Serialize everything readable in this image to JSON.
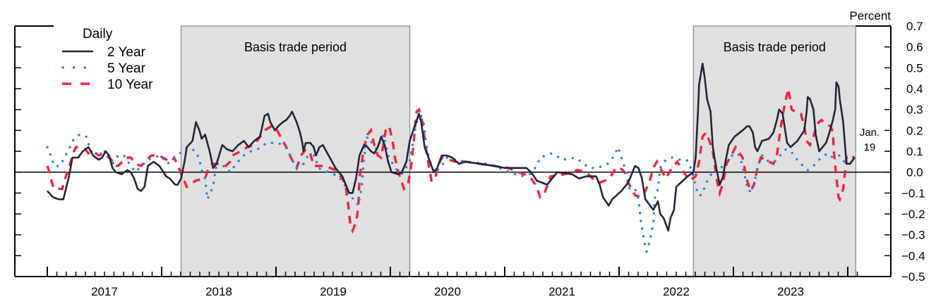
{
  "chart_data": {
    "type": "line",
    "title": "",
    "ylabel": "Percent",
    "xlabel": "",
    "ylim": [
      -0.5,
      0.7
    ],
    "xlim": [
      2016.72,
      2024.37
    ],
    "yticks": [
      "0.7",
      "0.6",
      "0.5",
      "0.4",
      "0.3",
      "0.2",
      "0.1",
      "0.0",
      "−0.1",
      "−0.2",
      "−0.3",
      "−0.4",
      "−0.5"
    ],
    "ytick_values": [
      0.7,
      0.6,
      0.5,
      0.4,
      0.3,
      0.2,
      0.1,
      0.0,
      -0.1,
      -0.2,
      -0.3,
      -0.4,
      -0.5
    ],
    "xticks": [
      "2017",
      "2018",
      "2019",
      "2020",
      "2021",
      "2022",
      "2023"
    ],
    "grid": false,
    "legend": {
      "title": "Daily",
      "placement": "top-left"
    },
    "shaded_periods": [
      {
        "label": "Basis trade period",
        "start": 2018.17,
        "end": 2020.17
      },
      {
        "label": "Basis trade period",
        "start": 2022.65,
        "end": 2024.07
      }
    ],
    "annotations": [
      {
        "text_line1": "Jan.",
        "text_line2": "19",
        "x": 2024.05
      }
    ],
    "colors": {
      "2 Year": "#23253a",
      "5 Year": "#2f7cf6",
      "10 Year": "#f0243c",
      "shade": "#e0e0e0"
    },
    "series": [
      {
        "name": "2 Year",
        "style": "solid",
        "x": [
          2017.0,
          2017.05,
          2017.1,
          2017.14,
          2017.19,
          2017.22,
          2017.27,
          2017.31,
          2017.36,
          2017.4,
          2017.45,
          2017.48,
          2017.51,
          2017.54,
          2017.57,
          2017.6,
          2017.65,
          2017.7,
          2017.73,
          2017.76,
          2017.79,
          2017.82,
          2017.85,
          2017.88,
          2017.93,
          2017.98,
          2018.04,
          2018.07,
          2018.12,
          2018.14,
          2018.17,
          2018.2,
          2018.22,
          2018.27,
          2018.3,
          2018.33,
          2018.35,
          2018.38,
          2018.42,
          2018.45,
          2018.48,
          2018.53,
          2018.57,
          2018.62,
          2018.67,
          2018.72,
          2018.76,
          2018.81,
          2018.86,
          2018.88,
          2018.9,
          2018.93,
          2018.95,
          2018.99,
          2019.02,
          2019.06,
          2019.09,
          2019.12,
          2019.14,
          2019.18,
          2019.21,
          2019.23,
          2019.24,
          2019.26,
          2019.3,
          2019.33,
          2019.35,
          2019.38,
          2019.41,
          2019.46,
          2019.49,
          2019.52,
          2019.55,
          2019.58,
          2019.61,
          2019.64,
          2019.67,
          2019.7,
          2019.73,
          2019.77,
          2019.8,
          2019.83,
          2019.86,
          2019.89,
          2019.92,
          2019.95,
          2019.98,
          2020.01,
          2020.07,
          2020.1,
          2020.14,
          2020.17,
          2020.2,
          2020.25,
          2020.27,
          2020.3,
          2020.34,
          2020.38,
          2020.41,
          2020.45,
          2020.49,
          2020.54,
          2020.6,
          2020.66,
          2020.78,
          2020.91,
          2021.0,
          2021.09,
          2021.19,
          2021.23,
          2021.28,
          2021.37,
          2021.43,
          2021.46,
          2021.59,
          2021.65,
          2021.71,
          2021.8,
          2021.83,
          2021.86,
          2021.91,
          2021.94,
          2022.02,
          2022.08,
          2022.14,
          2022.17,
          2022.2,
          2022.23,
          2022.3,
          2022.34,
          2022.36,
          2022.39,
          2022.43,
          2022.45,
          2022.48,
          2022.5,
          2022.56,
          2022.6,
          2022.65,
          2022.67,
          2022.69,
          2022.7,
          2022.73,
          2022.75,
          2022.77,
          2022.8,
          2022.82,
          2022.85,
          2022.88,
          2022.91,
          2022.93,
          2022.96,
          2023.01,
          2023.08,
          2023.12,
          2023.14,
          2023.17,
          2023.19,
          2023.21,
          2023.25,
          2023.31,
          2023.35,
          2023.38,
          2023.4,
          2023.43,
          2023.45,
          2023.47,
          2023.5,
          2023.56,
          2023.62,
          2023.64,
          2023.65,
          2023.67,
          2023.7,
          2023.72,
          2023.75,
          2023.81,
          2023.84,
          2023.87,
          2023.89,
          2023.9,
          2023.92,
          2023.93,
          2023.96,
          2023.98,
          2023.99,
          2024.02,
          2024.06
        ],
        "y": [
          -0.09,
          -0.12,
          -0.13,
          -0.13,
          -0.02,
          0.07,
          0.07,
          0.1,
          0.12,
          0.08,
          0.06,
          0.07,
          0.1,
          0.08,
          0.02,
          0.0,
          -0.01,
          0.01,
          0.0,
          -0.03,
          -0.08,
          -0.09,
          -0.07,
          0.03,
          0.05,
          0.03,
          -0.02,
          -0.03,
          -0.06,
          -0.06,
          -0.03,
          0.05,
          0.12,
          0.15,
          0.24,
          0.2,
          0.16,
          0.18,
          0.1,
          0.02,
          0.04,
          0.13,
          0.11,
          0.1,
          0.13,
          0.15,
          0.12,
          0.15,
          0.17,
          0.22,
          0.27,
          0.28,
          0.24,
          0.2,
          0.22,
          0.24,
          0.25,
          0.27,
          0.29,
          0.24,
          0.19,
          0.14,
          0.1,
          0.14,
          0.14,
          0.12,
          0.08,
          0.12,
          0.13,
          0.08,
          0.05,
          0.02,
          0.0,
          -0.02,
          -0.06,
          -0.1,
          -0.1,
          -0.03,
          0.08,
          0.13,
          0.12,
          0.1,
          0.09,
          0.12,
          0.17,
          0.13,
          0.05,
          0.0,
          -0.01,
          0.0,
          0.05,
          0.15,
          0.2,
          0.28,
          0.24,
          0.12,
          0.06,
          0.0,
          0.02,
          0.08,
          0.08,
          0.07,
          0.04,
          0.05,
          0.04,
          0.03,
          0.02,
          0.02,
          0.02,
          0.0,
          -0.04,
          -0.06,
          -0.02,
          0.0,
          -0.01,
          -0.03,
          -0.02,
          -0.02,
          -0.06,
          -0.12,
          -0.16,
          -0.13,
          -0.09,
          -0.05,
          0.03,
          0.02,
          -0.03,
          -0.13,
          -0.18,
          -0.14,
          -0.2,
          -0.22,
          -0.28,
          -0.22,
          -0.18,
          -0.07,
          -0.04,
          -0.02,
          0.0,
          0.07,
          0.29,
          0.42,
          0.52,
          0.45,
          0.35,
          0.29,
          0.12,
          0.02,
          -0.06,
          -0.02,
          0.05,
          0.13,
          0.17,
          0.2,
          0.22,
          0.22,
          0.19,
          0.12,
          0.1,
          0.15,
          0.16,
          0.19,
          0.25,
          0.3,
          0.28,
          0.21,
          0.14,
          0.12,
          0.15,
          0.2,
          0.29,
          0.36,
          0.35,
          0.3,
          0.18,
          0.1,
          0.14,
          0.19,
          0.25,
          0.3,
          0.43,
          0.41,
          0.35,
          0.24,
          0.1,
          0.04,
          0.04,
          0.07
        ]
      },
      {
        "name": "5 Year",
        "style": "dotted",
        "x": [
          2017.0,
          2017.03,
          2017.06,
          2017.11,
          2017.15,
          2017.19,
          2017.22,
          2017.28,
          2017.34,
          2017.37,
          2017.41,
          2017.45,
          2017.49,
          2017.57,
          2017.62,
          2017.67,
          2017.73,
          2017.77,
          2017.88,
          2017.99,
          2018.05,
          2018.14,
          2018.2,
          2018.23,
          2018.3,
          2018.33,
          2018.35,
          2018.38,
          2018.4,
          2018.44,
          2018.46,
          2018.47,
          2018.55,
          2018.6,
          2018.65,
          2018.72,
          2018.78,
          2018.84,
          2018.92,
          2019.01,
          2019.07,
          2019.1,
          2019.14,
          2019.18,
          2019.23,
          2019.28,
          2019.34,
          2019.37,
          2019.55,
          2019.61,
          2019.65,
          2019.69,
          2019.72,
          2019.75,
          2019.77,
          2019.8,
          2019.88,
          2019.94,
          2019.98,
          2020.04,
          2020.1,
          2020.17,
          2020.2,
          2020.23,
          2020.27,
          2020.29,
          2020.31,
          2020.34,
          2020.38,
          2020.44,
          2020.49,
          2020.66,
          2020.85,
          2021.0,
          2021.14,
          2021.22,
          2021.28,
          2021.31,
          2021.41,
          2021.51,
          2021.62,
          2021.74,
          2021.81,
          2021.9,
          2021.96,
          2021.99,
          2022.02,
          2022.07,
          2022.09,
          2022.14,
          2022.17,
          2022.19,
          2022.22,
          2022.24,
          2022.27,
          2022.3,
          2022.31,
          2022.34,
          2022.36,
          2022.41,
          2022.46,
          2022.53,
          2022.59,
          2022.62,
          2022.65,
          2022.67,
          2022.69,
          2022.72,
          2022.75,
          2022.78,
          2022.82,
          2022.88,
          2022.91,
          2022.99,
          2023.04,
          2023.07,
          2023.13,
          2023.16,
          2023.2,
          2023.22,
          2023.25,
          2023.31,
          2023.36,
          2023.41,
          2023.46,
          2023.52,
          2023.57,
          2023.65,
          2023.7,
          2023.75,
          2023.82,
          2023.87,
          2023.93,
          2023.97,
          2024.0
        ],
        "y": [
          0.12,
          0.08,
          0.03,
          0.03,
          0.07,
          0.11,
          0.15,
          0.18,
          0.17,
          0.12,
          0.07,
          0.07,
          0.11,
          0.04,
          0.08,
          0.08,
          0.03,
          0.0,
          0.06,
          0.08,
          0.04,
          0.08,
          0.11,
          0.12,
          0.1,
          0.06,
          0.01,
          -0.03,
          -0.13,
          -0.08,
          -0.04,
          0.02,
          0.03,
          0.0,
          0.04,
          0.08,
          0.1,
          0.11,
          0.14,
          0.14,
          0.13,
          0.11,
          0.06,
          0.02,
          0.03,
          0.08,
          0.08,
          0.02,
          -0.02,
          -0.07,
          -0.12,
          -0.13,
          -0.16,
          -0.07,
          0.07,
          0.17,
          0.11,
          0.18,
          0.08,
          0.02,
          -0.01,
          0.05,
          0.15,
          0.24,
          0.27,
          0.24,
          0.15,
          0.06,
          0.0,
          0.02,
          0.07,
          0.05,
          0.04,
          0.01,
          -0.02,
          -0.01,
          0.03,
          0.07,
          0.09,
          0.06,
          0.07,
          0.02,
          0.02,
          0.04,
          0.08,
          0.12,
          0.07,
          -0.01,
          -0.08,
          -0.08,
          -0.13,
          -0.23,
          -0.33,
          -0.38,
          -0.33,
          -0.24,
          -0.13,
          -0.08,
          0.02,
          0.06,
          0.07,
          0.06,
          0.06,
          0.03,
          -0.02,
          -0.06,
          -0.11,
          -0.11,
          -0.07,
          -0.03,
          0.0,
          0.0,
          0.04,
          0.08,
          0.09,
          0.05,
          -0.09,
          -0.09,
          -0.01,
          0.04,
          0.08,
          0.05,
          0.05,
          0.08,
          0.11,
          0.09,
          0.05,
          0.01,
          0.03,
          0.06,
          0.09,
          0.07,
          0.08,
          0.05,
          0.03
        ]
      },
      {
        "name": "10 Year",
        "style": "dashed",
        "x": [
          2017.0,
          2017.02,
          2017.04,
          2017.06,
          2017.13,
          2017.15,
          2017.19,
          2017.22,
          2017.25,
          2017.28,
          2017.33,
          2017.36,
          2017.4,
          2017.45,
          2017.5,
          2017.52,
          2017.56,
          2017.59,
          2017.62,
          2017.69,
          2017.73,
          2017.77,
          2017.82,
          2017.87,
          2017.91,
          2017.98,
          2018.04,
          2018.08,
          2018.11,
          2018.15,
          2018.18,
          2018.22,
          2018.3,
          2018.38,
          2018.41,
          2018.44,
          2018.51,
          2018.56,
          2018.6,
          2018.62,
          2018.69,
          2018.75,
          2018.81,
          2018.86,
          2018.9,
          2018.96,
          2019.01,
          2019.06,
          2019.09,
          2019.13,
          2019.18,
          2019.22,
          2019.26,
          2019.3,
          2019.33,
          2019.43,
          2019.52,
          2019.58,
          2019.61,
          2019.63,
          2019.65,
          2019.67,
          2019.7,
          2019.72,
          2019.73,
          2019.77,
          2019.8,
          2019.83,
          2019.86,
          2019.89,
          2019.92,
          2019.96,
          2019.99,
          2020.02,
          2020.04,
          2020.07,
          2020.12,
          2020.15,
          2020.18,
          2020.2,
          2020.23,
          2020.25,
          2020.28,
          2020.31,
          2020.34,
          2020.36,
          2020.39,
          2020.41,
          2020.45,
          2020.57,
          2020.66,
          2020.91,
          2021.03,
          2021.12,
          2021.22,
          2021.28,
          2021.31,
          2021.34,
          2021.37,
          2021.4,
          2021.52,
          2021.64,
          2021.71,
          2021.77,
          2021.83,
          2021.88,
          2021.93,
          2021.97,
          2022.01,
          2022.05,
          2022.08,
          2022.11,
          2022.14,
          2022.19,
          2022.23,
          2022.27,
          2022.3,
          2022.33,
          2022.38,
          2022.41,
          2022.46,
          2022.51,
          2022.54,
          2022.59,
          2022.62,
          2022.67,
          2022.7,
          2022.73,
          2022.76,
          2022.79,
          2022.82,
          2022.84,
          2022.86,
          2022.88,
          2022.91,
          2022.94,
          2022.98,
          2023.02,
          2023.08,
          2023.12,
          2023.15,
          2023.18,
          2023.21,
          2023.24,
          2023.31,
          2023.35,
          2023.38,
          2023.41,
          2023.44,
          2023.48,
          2023.51,
          2023.54,
          2023.59,
          2023.62,
          2023.64,
          2023.67,
          2023.7,
          2023.73,
          2023.77,
          2023.81,
          2023.85,
          2023.87,
          2023.88,
          2023.9,
          2023.92,
          2023.93,
          2023.96,
          2023.98,
          2023.99,
          2024.06
        ],
        "y": [
          0.03,
          0.0,
          -0.05,
          -0.08,
          -0.08,
          -0.04,
          0.02,
          0.08,
          0.12,
          0.12,
          0.11,
          0.09,
          0.1,
          0.08,
          0.09,
          0.08,
          0.06,
          0.03,
          0.03,
          0.07,
          0.07,
          0.04,
          0.03,
          0.06,
          0.08,
          0.08,
          0.06,
          0.05,
          0.07,
          0.02,
          -0.02,
          -0.07,
          -0.04,
          -0.03,
          0.02,
          0.04,
          0.04,
          0.03,
          0.05,
          0.08,
          0.1,
          0.12,
          0.13,
          0.17,
          0.2,
          0.22,
          0.2,
          0.15,
          0.12,
          0.07,
          0.02,
          0.08,
          0.11,
          0.09,
          0.03,
          0.03,
          0.01,
          -0.03,
          -0.07,
          -0.15,
          -0.25,
          -0.28,
          -0.24,
          -0.17,
          -0.03,
          0.12,
          0.18,
          0.2,
          0.13,
          0.08,
          0.07,
          0.2,
          0.22,
          0.15,
          0.07,
          0.0,
          -0.08,
          -0.07,
          0.02,
          0.12,
          0.29,
          0.3,
          0.24,
          0.12,
          0.02,
          -0.04,
          -0.04,
          0.02,
          0.07,
          0.05,
          0.05,
          0.03,
          0.02,
          0.0,
          -0.02,
          -0.07,
          -0.12,
          -0.11,
          -0.07,
          -0.02,
          -0.01,
          0.01,
          0.0,
          -0.03,
          -0.05,
          -0.04,
          -0.02,
          0.02,
          0.02,
          0.0,
          -0.05,
          -0.08,
          -0.11,
          -0.12,
          -0.09,
          -0.04,
          0.02,
          0.05,
          0.0,
          -0.03,
          0.02,
          0.05,
          0.02,
          -0.02,
          -0.04,
          -0.02,
          0.05,
          0.17,
          0.19,
          0.15,
          0.1,
          0.02,
          -0.05,
          -0.1,
          -0.05,
          0.04,
          0.08,
          0.12,
          0.07,
          -0.04,
          -0.09,
          -0.06,
          0.02,
          0.07,
          0.05,
          0.04,
          0.08,
          0.2,
          0.3,
          0.4,
          0.3,
          0.29,
          0.28,
          0.22,
          0.15,
          0.13,
          0.17,
          0.23,
          0.25,
          0.23,
          0.22,
          0.19,
          0.09,
          -0.02,
          -0.12,
          -0.13,
          -0.08,
          0.02,
          0.08,
          0.07
        ]
      }
    ]
  }
}
